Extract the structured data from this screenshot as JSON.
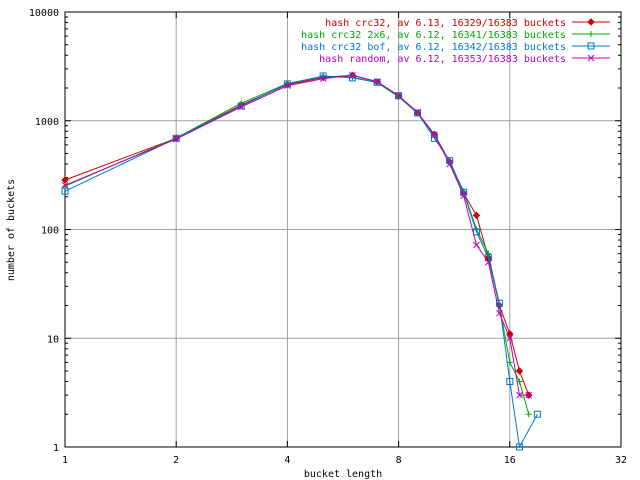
{
  "chart_data": {
    "type": "line",
    "xlabel": "bucket length",
    "ylabel": "number of buckets",
    "xscale": "log2",
    "yscale": "log10",
    "xlim": [
      1,
      32
    ],
    "ylim": [
      1,
      10000
    ],
    "x_ticks": [
      1,
      2,
      4,
      8,
      16,
      32
    ],
    "x_tick_labels": [
      "1",
      "2",
      "4",
      "8",
      "16",
      "32"
    ],
    "y_ticks": [
      1,
      10,
      100,
      1000,
      10000
    ],
    "y_tick_labels": [
      "1",
      "10",
      "100",
      "1000",
      "10000"
    ],
    "grid": true,
    "legend_position": "top-right",
    "series": [
      {
        "name": "hash crc32, av 6.13, 16329/16383 buckets",
        "color": "#cc0000",
        "marker": "diamond",
        "x": [
          1,
          2,
          3,
          4,
          5,
          6,
          7,
          8,
          9,
          10,
          11,
          12,
          13,
          14,
          15,
          16,
          17,
          18
        ],
        "y": [
          285,
          690,
          1400,
          2150,
          2500,
          2620,
          2280,
          1680,
          1180,
          750,
          420,
          215,
          135,
          55,
          20,
          11,
          5,
          3
        ]
      },
      {
        "name": "hash crc32 2x6, av 6.12, 16341/16383 buckets",
        "color": "#00aa00",
        "marker": "plus",
        "x": [
          1,
          2,
          3,
          4,
          5,
          6,
          7,
          8,
          9,
          10,
          11,
          12,
          13,
          14,
          15,
          16,
          17,
          18
        ],
        "y": [
          250,
          695,
          1450,
          2200,
          2550,
          2520,
          2240,
          1660,
          1170,
          730,
          410,
          225,
          100,
          60,
          20,
          6,
          4,
          2
        ]
      },
      {
        "name": "hash crc32 bof, av 6.12, 16342/16383 buckets",
        "color": "#0077cc",
        "marker": "square",
        "x": [
          1,
          2,
          3,
          4,
          5,
          6,
          7,
          8,
          9,
          10,
          11,
          12,
          13,
          14,
          15,
          16,
          17,
          19
        ],
        "y": [
          225,
          690,
          1370,
          2180,
          2580,
          2480,
          2260,
          1700,
          1180,
          690,
          430,
          220,
          95,
          55,
          21,
          4,
          1,
          2
        ]
      },
      {
        "name": "hash random, av 6.12, 16353/16383 buckets",
        "color": "#bb00bb",
        "marker": "x",
        "x": [
          1,
          2,
          3,
          4,
          5,
          6,
          7,
          8,
          9,
          10,
          11,
          12,
          13,
          14,
          15,
          16,
          17,
          18
        ],
        "y": [
          255,
          680,
          1340,
          2100,
          2440,
          2620,
          2290,
          1700,
          1200,
          740,
          400,
          205,
          72,
          50,
          17,
          10,
          3,
          3
        ]
      }
    ]
  }
}
